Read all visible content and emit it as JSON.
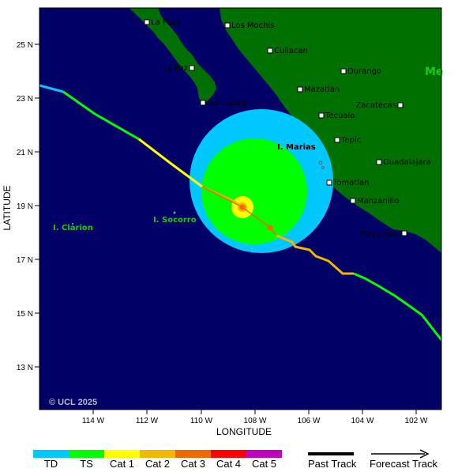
{
  "axes": {
    "y_title": "LATITUDE",
    "x_title": "LONGITUDE",
    "y_ticks": [
      "25 N",
      "23 N",
      "21 N",
      "19 N",
      "17 N",
      "15 N",
      "13 N"
    ],
    "x_ticks": [
      "114 W",
      "112 W",
      "110 W",
      "108 W",
      "106 W",
      "104 W",
      "102 W"
    ]
  },
  "cities": [
    {
      "name": "La Poza"
    },
    {
      "name": "Los Mochis"
    },
    {
      "name": "Culiacan"
    },
    {
      "name": "La Paz"
    },
    {
      "name": "Durango"
    },
    {
      "name": "Mazatlan"
    },
    {
      "name": "San Lucas"
    },
    {
      "name": "Tecuala"
    },
    {
      "name": "Zacatecas"
    },
    {
      "name": "Tepic"
    },
    {
      "name": "Guadalajara"
    },
    {
      "name": "Tomatlan"
    },
    {
      "name": "Manzanillo"
    },
    {
      "name": "Playa Azul"
    }
  ],
  "islands": [
    {
      "name": "I. Marias",
      "color": "#000000"
    },
    {
      "name": "I. Socorro",
      "color": "#18c818"
    },
    {
      "name": "I. Clarion",
      "color": "#18c818"
    }
  ],
  "country_label": "Me",
  "copyright": "© UCL 2025",
  "colors": {
    "ocean": "#000066",
    "land": "#007000",
    "td": "#00c8ff",
    "ts": "#00ff00",
    "cat1": "#ffff00",
    "cat2": "#f0b800",
    "cat3": "#f06800",
    "cat4": "#ff0000",
    "cat5": "#c000c0"
  },
  "legend": {
    "categories": [
      {
        "label": "TD",
        "color": "#00c8ff"
      },
      {
        "label": "TS",
        "color": "#00ff00"
      },
      {
        "label": "Cat 1",
        "color": "#ffff00"
      },
      {
        "label": "Cat 2",
        "color": "#f0b800"
      },
      {
        "label": "Cat 3",
        "color": "#f06800"
      },
      {
        "label": "Cat 4",
        "color": "#ff0000"
      },
      {
        "label": "Cat 5",
        "color": "#c000c0"
      }
    ],
    "past_track": "Past Track",
    "forecast_track": "Forecast Track"
  }
}
